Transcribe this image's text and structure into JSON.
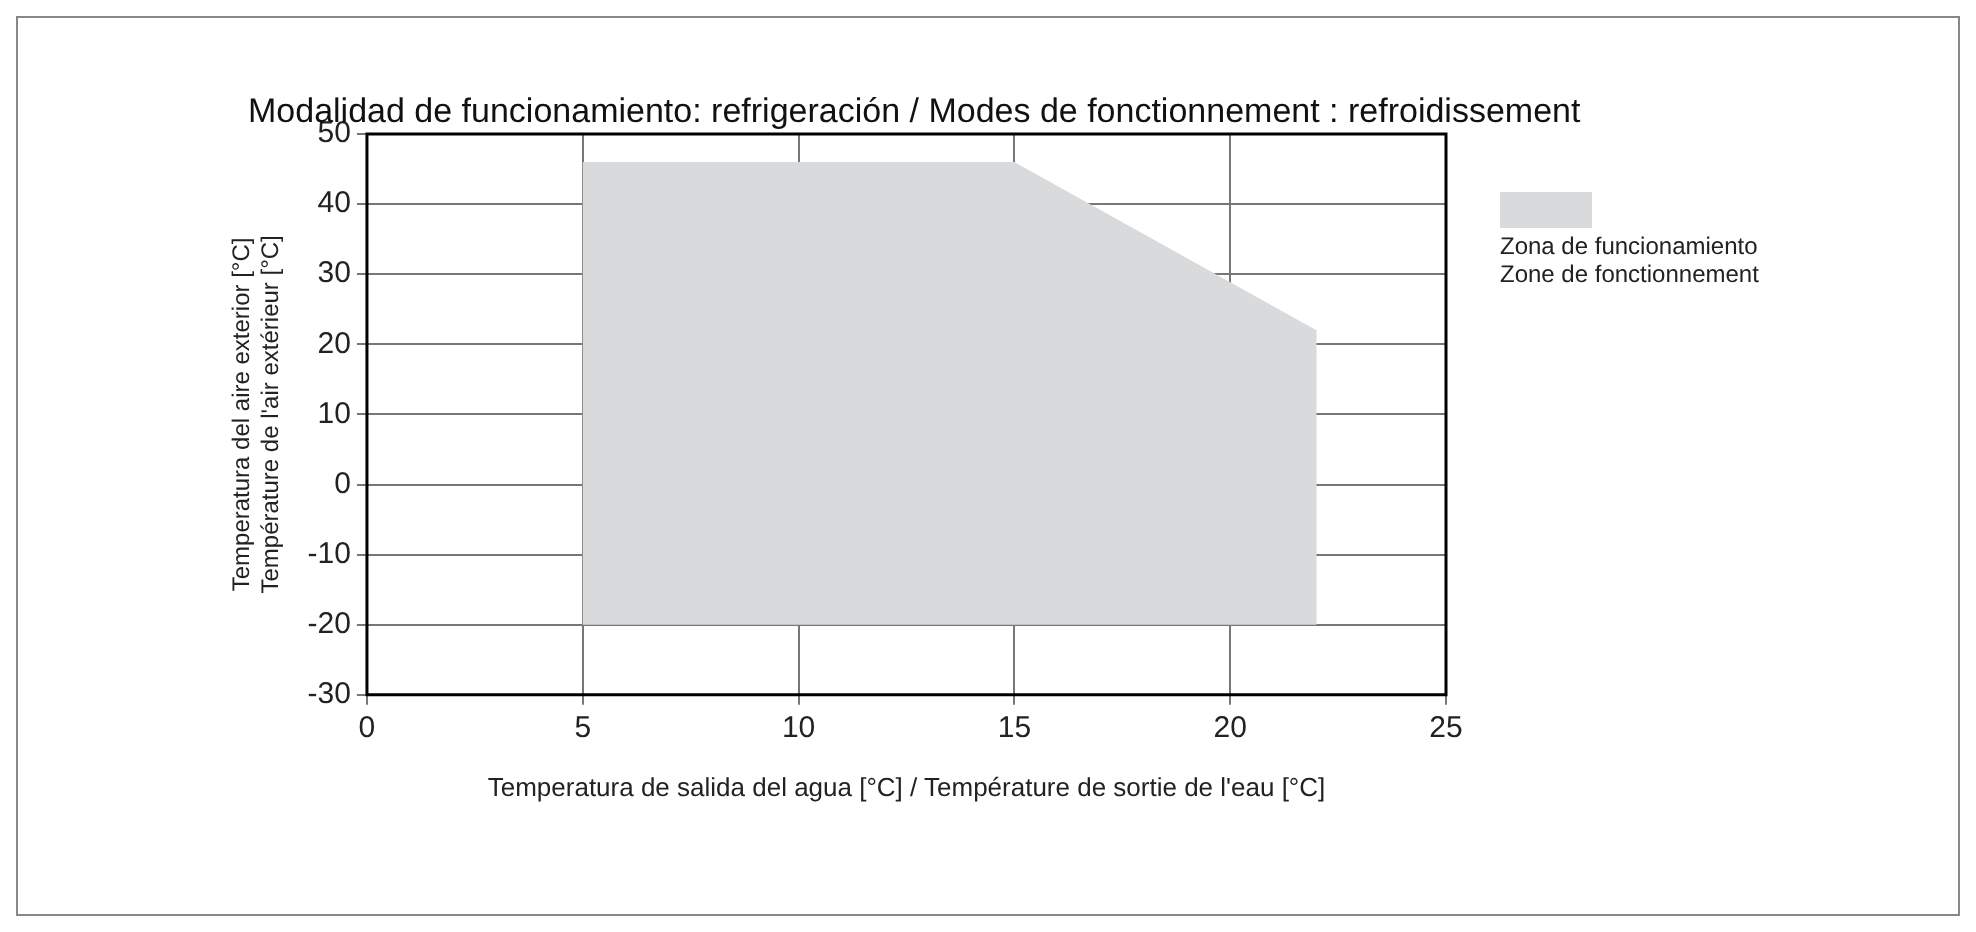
{
  "chart_data": {
    "type": "area",
    "title": "Modalidad de funcionamiento: refrigeración / Modes de fonctionnement : refroidissement",
    "xlabel": "Temperatura de salida del agua [°C] / Température de sortie de l'eau [°C]",
    "ylabel": "Temperatura del aire exterior [°C]\nTempérature de l'air extérieur [°C]",
    "xlim": [
      0,
      25
    ],
    "xticks": [
      0,
      5,
      10,
      15,
      20,
      25
    ],
    "ylim": [
      -30,
      50
    ],
    "yticks": [
      -30,
      -20,
      -10,
      0,
      10,
      20,
      30,
      40,
      50
    ],
    "grid": true,
    "legend": "right",
    "series": [
      {
        "name": "Zona de funcionamiento\nZone de fonctionnement",
        "color": "#d9dadc",
        "x": [
          5,
          5,
          15,
          22,
          22
        ],
        "values": [
          -20,
          46,
          46,
          22,
          -20
        ]
      }
    ]
  }
}
